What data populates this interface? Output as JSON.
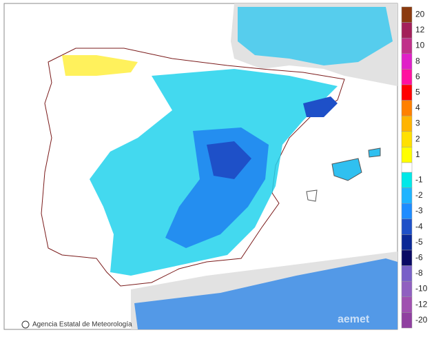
{
  "map": {
    "credit": "Agencia Estatal de Meteorología",
    "watermark": "aemet"
  },
  "legend": {
    "items": [
      {
        "value": 20,
        "color": "#8b3a0f"
      },
      {
        "value": 12,
        "color": "#a3205a"
      },
      {
        "value": 10,
        "color": "#c0308a"
      },
      {
        "value": 8,
        "color": "#e020c8"
      },
      {
        "value": 6,
        "color": "#ff10a0"
      },
      {
        "value": 5,
        "color": "#ff0000"
      },
      {
        "value": 4,
        "color": "#ff8000"
      },
      {
        "value": 3,
        "color": "#ffb400"
      },
      {
        "value": 2,
        "color": "#ffe000"
      },
      {
        "value": 1,
        "color": "#ffff00"
      },
      {
        "value": -1,
        "color": "#00e8e8"
      },
      {
        "value": -2,
        "color": "#1eb4ff"
      },
      {
        "value": -3,
        "color": "#1e8cff"
      },
      {
        "value": -4,
        "color": "#1e50c8"
      },
      {
        "value": -5,
        "color": "#0a2896"
      },
      {
        "value": -6,
        "color": "#0a0a64"
      },
      {
        "value": -8,
        "color": "#7860c8"
      },
      {
        "value": -10,
        "color": "#9060c0"
      },
      {
        "value": -12,
        "color": "#a050b0"
      },
      {
        "value": -20,
        "color": "#9040a0"
      }
    ]
  }
}
